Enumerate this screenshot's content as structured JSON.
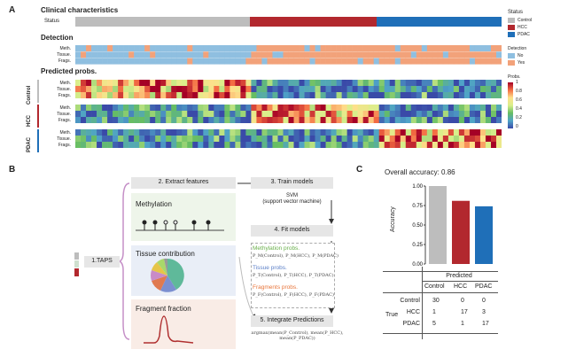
{
  "panel_a": {
    "label": "A",
    "title": "Clinical characteristics",
    "status_label": "Status",
    "detection_title": "Detection",
    "detection_rows": [
      "Meth.",
      "Tissue.",
      "Frags."
    ],
    "predicted_title": "Predicted probs.",
    "groups": [
      "Control",
      "HCC",
      "PDAC"
    ],
    "group_rows": [
      "Meth.",
      "Tissue.",
      "Frags."
    ],
    "status_legend_title": "Status",
    "status_legend": [
      "Control",
      "HCC",
      "PDAC"
    ],
    "detection_legend_title": "Detection",
    "detection_legend": [
      "No",
      "Yes"
    ],
    "probs_legend_title": "Probs.",
    "probs_ticks": [
      "1",
      "0.8",
      "0.6",
      "0.4",
      "0.2",
      "0"
    ],
    "colors": {
      "control": "#bdbdbd",
      "hcc": "#b2282e",
      "pdac": "#1f6fb8",
      "no": "#8fbfe0",
      "yes": "#f2a27a"
    }
  },
  "panel_b": {
    "label": "B",
    "step1": "1.TAPS",
    "step2": "2. Extract features",
    "step3": "3. Train models",
    "svm_line1": "SVM",
    "svm_line2": "(support vector machine)",
    "step4": "4. Fit models",
    "step5": "5. Integrate Predictions",
    "feat_methylation": "Methylation",
    "feat_tissue": "Tissue contribution",
    "feat_fragment": "Fragment fraction",
    "meth_probs": "Methylation probs.",
    "tissue_probs": "Tissue probs.",
    "frag_probs": "Fragments probs.",
    "meth_formula": "P_M(Control), P_M(HCC), P_M(PDAC)",
    "tissue_formula": "P_T(Control), P_T(HCC), P_T(PDAC)",
    "frag_formula": "P_F(Control), P_F(HCC), P_F(PDAC)",
    "integrate_formula": "argmax(mean(P_Control), mean(P_HCC), mean(P_PDAC))",
    "prob_colors": {
      "meth": "#6ab04c",
      "tissue": "#5b7fc7",
      "frag": "#e8753a"
    }
  },
  "panel_c": {
    "label": "C",
    "title": "Overall accuracy: 0.86",
    "chart_data": {
      "type": "bar",
      "categories": [
        "Control",
        "HCC",
        "PDAC"
      ],
      "values": [
        1.0,
        0.81,
        0.74
      ],
      "colors": [
        "#bdbdbd",
        "#b2282e",
        "#1f6fb8"
      ],
      "ylabel": "Accuracy",
      "yticks": [
        "1.00",
        "0.75",
        "0.50",
        "0.25",
        "0.00"
      ],
      "ylim": [
        0,
        1
      ]
    },
    "confusion": {
      "predicted_label": "Predicted",
      "true_label": "True",
      "cols": [
        "Control",
        "HCC",
        "PDAC"
      ],
      "rows": [
        {
          "name": "Control",
          "values": [
            "30",
            "0",
            "0"
          ]
        },
        {
          "name": "HCC",
          "values": [
            "1",
            "17",
            "3"
          ]
        },
        {
          "name": "PDAC",
          "values": [
            "5",
            "1",
            "17"
          ]
        }
      ]
    }
  }
}
